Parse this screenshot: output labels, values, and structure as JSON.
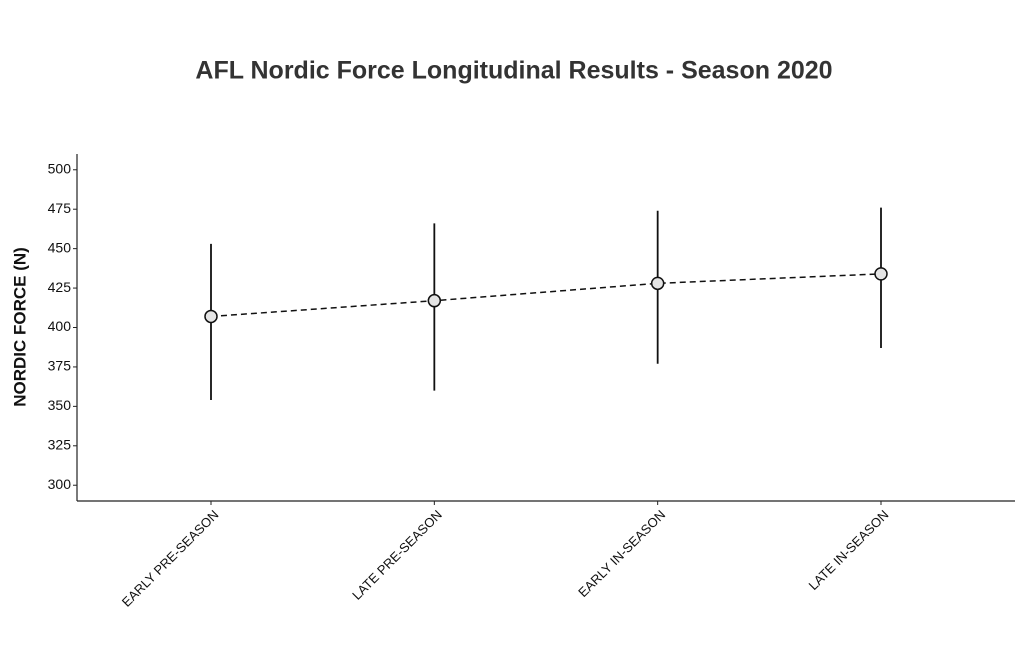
{
  "chart_data": {
    "type": "errorbar-line",
    "title": "AFL Nordic Force Longitudinal Results - Season 2020",
    "y_label": "NORDIC FORCE (N)",
    "categories": [
      "EARLY PRE-SEASON",
      "LATE PRE-SEASON",
      "EARLY IN-SEASON",
      "LATE IN-SEASON"
    ],
    "series": [
      {
        "values": [
          407,
          417,
          428,
          434
        ],
        "lower": [
          354,
          360,
          377,
          387
        ],
        "upper": [
          453,
          466,
          474,
          476
        ],
        "color": "#e5e5e5"
      }
    ],
    "ylim": [
      290,
      510
    ],
    "yticks": [
      300,
      325,
      350,
      375,
      400,
      425,
      450,
      475,
      500
    ],
    "grid": false
  }
}
